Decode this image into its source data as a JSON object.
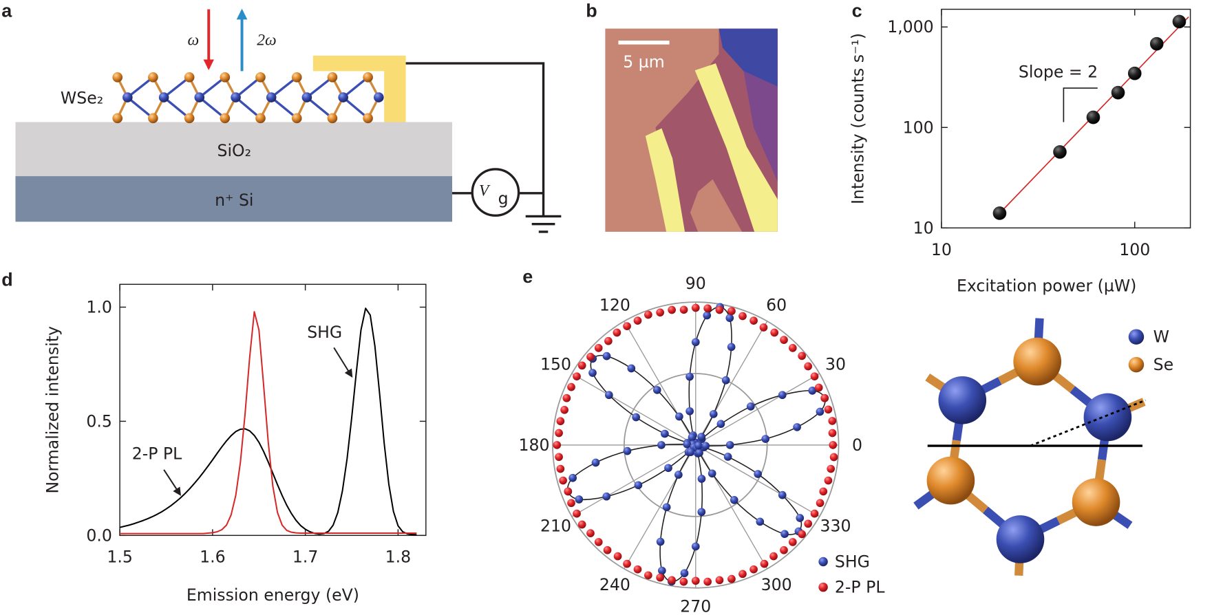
{
  "figure": {
    "panel_labels": [
      "a",
      "b",
      "c",
      "d",
      "e"
    ],
    "panel_a": {
      "omega": "ω",
      "two_omega": "2ω",
      "wse2": "WSe₂",
      "sio2": "SiO₂",
      "si": "n⁺ Si",
      "gate": {
        "symbol": "V",
        "subscript": "g"
      }
    },
    "panel_b": {
      "scale_bar": "5 µm"
    },
    "structure": {
      "legend": [
        "W",
        "Se"
      ]
    }
  },
  "chart_data": [
    {
      "type": "scatter",
      "log_x": true,
      "log_y": true,
      "x": [
        20,
        41,
        61,
        82,
        100,
        130,
        170
      ],
      "values": [
        14,
        57,
        126,
        222,
        345,
        680,
        1130
      ],
      "color": "#231f20",
      "fit": {
        "x": [
          20,
          190
        ],
        "values": [
          14,
          1260
        ],
        "color": "#d62728"
      },
      "xlim": [
        10,
        194
      ],
      "ylim": [
        10,
        1500
      ],
      "xticks": [
        10,
        100
      ],
      "yticks": [
        10,
        100,
        {
          "value": 1000,
          "label": "1,000"
        }
      ],
      "xlabel": "Excitation power (µW)",
      "ylabel": "Intensity (counts s⁻¹)",
      "annotation": "Slope = 2"
    },
    {
      "type": "line",
      "x": [
        1.5,
        1.505,
        1.51,
        1.515,
        1.52,
        1.525,
        1.53,
        1.535,
        1.54,
        1.545,
        1.55,
        1.555,
        1.56,
        1.565,
        1.57,
        1.575,
        1.58,
        1.585,
        1.59,
        1.595,
        1.6,
        1.605,
        1.61,
        1.615,
        1.62,
        1.625,
        1.63,
        1.635,
        1.64,
        1.645,
        1.65,
        1.655,
        1.66,
        1.665,
        1.67,
        1.675,
        1.68,
        1.685,
        1.69,
        1.695,
        1.7,
        1.705,
        1.71,
        1.715,
        1.72,
        1.725,
        1.73,
        1.735,
        1.74,
        1.745,
        1.75,
        1.755,
        1.76,
        1.765,
        1.77,
        1.775,
        1.78,
        1.785,
        1.79,
        1.795,
        1.8,
        1.805,
        1.81,
        1.815,
        1.82
      ],
      "series": [
        {
          "color": "#000000",
          "values": [
            0.035,
            0.04,
            0.045,
            0.051,
            0.058,
            0.065,
            0.073,
            0.082,
            0.092,
            0.103,
            0.116,
            0.13,
            0.146,
            0.163,
            0.182,
            0.203,
            0.226,
            0.25,
            0.276,
            0.303,
            0.331,
            0.36,
            0.388,
            0.414,
            0.437,
            0.455,
            0.465,
            0.467,
            0.458,
            0.438,
            0.408,
            0.368,
            0.322,
            0.272,
            0.222,
            0.175,
            0.132,
            0.096,
            0.066,
            0.043,
            0.027,
            0.016,
            0.009,
            0.006,
            0.008,
            0.018,
            0.045,
            0.1,
            0.195,
            0.335,
            0.515,
            0.715,
            0.9,
            0.995,
            0.965,
            0.83,
            0.625,
            0.405,
            0.225,
            0.105,
            0.042,
            0.016,
            0.007,
            0.004,
            0.003
          ]
        },
        {
          "color": "#d62728",
          "values": [
            0.008,
            0.008,
            0.008,
            0.008,
            0.008,
            0.008,
            0.008,
            0.008,
            0.008,
            0.008,
            0.008,
            0.008,
            0.008,
            0.008,
            0.008,
            0.008,
            0.008,
            0.008,
            0.008,
            0.01,
            0.012,
            0.016,
            0.025,
            0.045,
            0.09,
            0.175,
            0.32,
            0.53,
            0.78,
            0.98,
            0.9,
            0.66,
            0.41,
            0.215,
            0.1,
            0.045,
            0.022,
            0.014,
            0.011,
            0.01,
            0.01,
            0.01,
            0.01,
            0.01,
            0.01,
            0.01,
            0.01,
            0.01,
            0.01,
            0.01,
            0.01,
            0.01,
            0.01,
            0.01,
            0.01,
            0.01,
            0.01,
            0.01,
            0.01,
            0.01,
            0.01,
            0.01,
            0.01,
            0.01,
            0.01
          ]
        }
      ],
      "xlim": [
        1.5,
        1.83
      ],
      "ylim": [
        0,
        1.1
      ],
      "xticks": [
        1.5,
        1.6,
        1.7,
        1.8
      ],
      "yticks": [
        {
          "value": 0,
          "label": "0.0"
        },
        0.5,
        {
          "value": 1,
          "label": "1.0"
        }
      ],
      "xlabel": "Emission energy (eV)",
      "ylabel": "Normalized intensity",
      "annotations": [
        "SHG",
        "2-P PL"
      ]
    },
    {
      "type": "polar",
      "theta": [
        0,
        5,
        10,
        15,
        20,
        25,
        30,
        35,
        40,
        45,
        50,
        55,
        60,
        65,
        70,
        75,
        80,
        85,
        90,
        95,
        100,
        105,
        110,
        115,
        120,
        125,
        130,
        135,
        140,
        145,
        150,
        155,
        160,
        165,
        170,
        175,
        180,
        185,
        190,
        195,
        200,
        205,
        210,
        215,
        220,
        225,
        230,
        235,
        240,
        245,
        250,
        255,
        260,
        265,
        270,
        275,
        280,
        285,
        290,
        295,
        300,
        305,
        310,
        315,
        320,
        325,
        330,
        335,
        340,
        345,
        350,
        355
      ],
      "series": [
        {
          "name": "SHG",
          "color": "#3b4fb3",
          "values": [
            0.24,
            0.49,
            0.72,
            0.9,
            0.96,
            0.9,
            0.7,
            0.47,
            0.23,
            0.06,
            0.02,
            0.07,
            0.25,
            0.5,
            0.73,
            0.92,
            0.98,
            0.91,
            0.72,
            0.48,
            0.24,
            0.07,
            0.02,
            0.06,
            0.23,
            0.47,
            0.7,
            0.88,
            0.94,
            0.88,
            0.7,
            0.46,
            0.23,
            0.06,
            0.02,
            0.06,
            0.24,
            0.48,
            0.71,
            0.89,
            0.95,
            0.9,
            0.72,
            0.49,
            0.25,
            0.07,
            0.02,
            0.06,
            0.24,
            0.48,
            0.72,
            0.91,
            0.97,
            0.9,
            0.71,
            0.47,
            0.24,
            0.06,
            0.02,
            0.06,
            0.23,
            0.47,
            0.7,
            0.88,
            0.94,
            0.89,
            0.7,
            0.48,
            0.24,
            0.06,
            0.02,
            0.07
          ]
        },
        {
          "name": "2-P PL",
          "color": "#e3262b",
          "values": [
            0.96,
            0.96,
            0.97,
            0.96,
            0.96,
            0.95,
            0.96,
            0.96,
            0.97,
            0.96,
            0.96,
            0.96,
            0.95,
            0.96,
            0.96,
            0.97,
            0.96,
            0.96,
            0.96,
            0.95,
            0.96,
            0.96,
            0.97,
            0.96,
            0.96,
            0.96,
            0.95,
            0.96,
            0.96,
            0.97,
            0.96,
            0.96,
            0.96,
            0.95,
            0.96,
            0.96,
            0.97,
            0.96,
            0.96,
            0.96,
            0.95,
            0.96,
            0.96,
            0.97,
            0.96,
            0.96,
            0.96,
            0.95,
            0.96,
            0.96,
            0.97,
            0.96,
            0.96,
            0.96,
            0.95,
            0.96,
            0.96,
            0.97,
            0.96,
            0.96,
            0.96,
            0.95,
            0.96,
            0.96,
            0.97,
            0.96,
            0.96,
            0.96,
            0.95,
            0.96,
            0.96,
            0.97
          ]
        }
      ],
      "rlim": [
        0,
        1
      ],
      "rticks": [
        0.5,
        1
      ],
      "thetaticks": [
        0,
        30,
        60,
        90,
        120,
        150,
        180,
        210,
        240,
        270,
        300,
        330
      ],
      "legend": "lower right"
    }
  ]
}
